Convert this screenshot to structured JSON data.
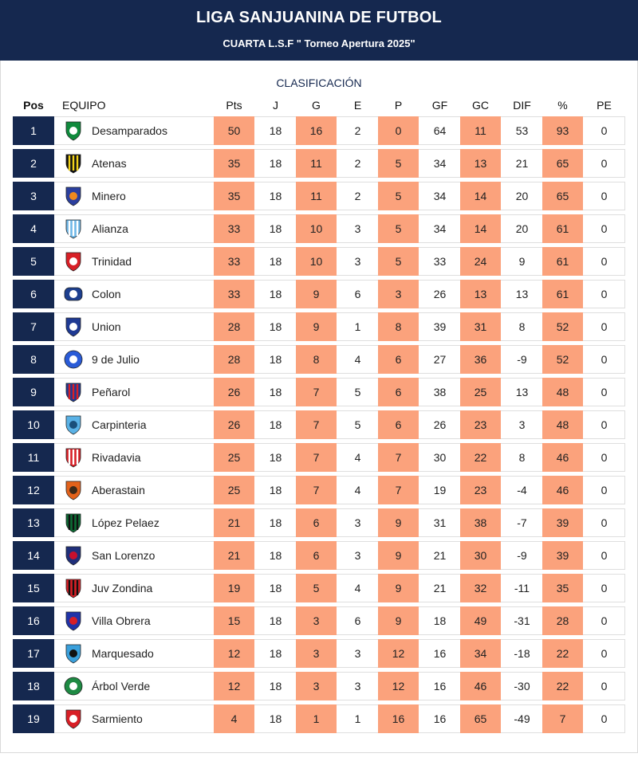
{
  "header": {
    "title": "LIGA SANJUANINA DE FUTBOL",
    "subtitle": "CUARTA L.S.F \" Torneo Apertura 2025\""
  },
  "table": {
    "title": "CLASIFICACIÓN",
    "columns": [
      "Pos",
      "EQUIPO",
      "Pts",
      "J",
      "G",
      "E",
      "P",
      "GF",
      "GC",
      "DIF",
      "%",
      "PE"
    ],
    "rows": [
      {
        "pos": "1",
        "team": "Desamparados",
        "pts": "50",
        "j": "18",
        "g": "16",
        "e": "2",
        "p": "0",
        "gf": "64",
        "gc": "11",
        "dif": "53",
        "pct": "93",
        "pe": "0",
        "crest": "desamparados-crest-icon",
        "c1": "#0f8a3c",
        "c2": "#ffffff",
        "shape": "shield"
      },
      {
        "pos": "2",
        "team": "Atenas",
        "pts": "35",
        "j": "18",
        "g": "11",
        "e": "2",
        "p": "5",
        "gf": "34",
        "gc": "13",
        "dif": "21",
        "pct": "65",
        "pe": "0",
        "crest": "atenas-crest-icon",
        "c1": "#111111",
        "c2": "#f2d21b",
        "shape": "stripes"
      },
      {
        "pos": "3",
        "team": "Minero",
        "pts": "35",
        "j": "18",
        "g": "11",
        "e": "2",
        "p": "5",
        "gf": "34",
        "gc": "14",
        "dif": "20",
        "pct": "65",
        "pe": "0",
        "crest": "minero-crest-icon",
        "c1": "#2b3f9e",
        "c2": "#f08a1d",
        "shape": "shield"
      },
      {
        "pos": "4",
        "team": "Alianza",
        "pts": "33",
        "j": "18",
        "g": "10",
        "e": "3",
        "p": "5",
        "gf": "34",
        "gc": "14",
        "dif": "20",
        "pct": "61",
        "pe": "0",
        "crest": "alianza-crest-icon",
        "c1": "#6fb8e8",
        "c2": "#ffffff",
        "shape": "stripes"
      },
      {
        "pos": "5",
        "team": "Trinidad",
        "pts": "33",
        "j": "18",
        "g": "10",
        "e": "3",
        "p": "5",
        "gf": "33",
        "gc": "24",
        "dif": "9",
        "pct": "61",
        "pe": "0",
        "crest": "trinidad-crest-icon",
        "c1": "#d81f26",
        "c2": "#ffffff",
        "shape": "shield"
      },
      {
        "pos": "6",
        "team": "Colon",
        "pts": "33",
        "j": "18",
        "g": "9",
        "e": "6",
        "p": "3",
        "gf": "26",
        "gc": "13",
        "dif": "13",
        "pct": "61",
        "pe": "0",
        "crest": "colon-crest-icon",
        "c1": "#1d3f8f",
        "c2": "#ffffff",
        "shape": "oval"
      },
      {
        "pos": "7",
        "team": "Union",
        "pts": "28",
        "j": "18",
        "g": "9",
        "e": "1",
        "p": "8",
        "gf": "39",
        "gc": "31",
        "dif": "8",
        "pct": "52",
        "pe": "0",
        "crest": "union-crest-icon",
        "c1": "#1f3a93",
        "c2": "#ffffff",
        "shape": "shield"
      },
      {
        "pos": "8",
        "team": "9 de Julio",
        "pts": "28",
        "j": "18",
        "g": "8",
        "e": "4",
        "p": "6",
        "gf": "27",
        "gc": "36",
        "dif": "-9",
        "pct": "52",
        "pe": "0",
        "crest": "nueve-de-julio-crest-icon",
        "c1": "#2a5bd7",
        "c2": "#ffffff",
        "shape": "circle"
      },
      {
        "pos": "9",
        "team": "Peñarol",
        "pts": "26",
        "j": "18",
        "g": "7",
        "e": "5",
        "p": "6",
        "gf": "38",
        "gc": "25",
        "dif": "13",
        "pct": "48",
        "pe": "0",
        "crest": "penarol-crest-icon",
        "c1": "#1f3a93",
        "c2": "#d81f26",
        "shape": "stripes"
      },
      {
        "pos": "10",
        "team": "Carpinteria",
        "pts": "26",
        "j": "18",
        "g": "7",
        "e": "5",
        "p": "6",
        "gf": "26",
        "gc": "23",
        "dif": "3",
        "pct": "48",
        "pe": "0",
        "crest": "carpinteria-crest-icon",
        "c1": "#5ab2e6",
        "c2": "#1a4f7a",
        "shape": "shield"
      },
      {
        "pos": "11",
        "team": "Rivadavia",
        "pts": "25",
        "j": "18",
        "g": "7",
        "e": "4",
        "p": "7",
        "gf": "30",
        "gc": "22",
        "dif": "8",
        "pct": "46",
        "pe": "0",
        "crest": "rivadavia-crest-icon",
        "c1": "#d81f26",
        "c2": "#ffffff",
        "shape": "stripes"
      },
      {
        "pos": "12",
        "team": "Aberastain",
        "pts": "25",
        "j": "18",
        "g": "7",
        "e": "4",
        "p": "7",
        "gf": "19",
        "gc": "23",
        "dif": "-4",
        "pct": "46",
        "pe": "0",
        "crest": "aberastain-crest-icon",
        "c1": "#e2621b",
        "c2": "#3b2a1a",
        "shape": "shield"
      },
      {
        "pos": "13",
        "team": "López Pelaez",
        "pts": "21",
        "j": "18",
        "g": "6",
        "e": "3",
        "p": "9",
        "gf": "31",
        "gc": "38",
        "dif": "-7",
        "pct": "39",
        "pe": "0",
        "crest": "lopez-pelaez-crest-icon",
        "c1": "#0c6b34",
        "c2": "#111111",
        "shape": "stripes"
      },
      {
        "pos": "14",
        "team": "San Lorenzo",
        "pts": "21",
        "j": "18",
        "g": "6",
        "e": "3",
        "p": "9",
        "gf": "21",
        "gc": "30",
        "dif": "-9",
        "pct": "39",
        "pe": "0",
        "crest": "san-lorenzo-crest-icon",
        "c1": "#1f2f7a",
        "c2": "#c8102e",
        "shape": "shield"
      },
      {
        "pos": "15",
        "team": "Juv Zondina",
        "pts": "19",
        "j": "18",
        "g": "5",
        "e": "4",
        "p": "9",
        "gf": "21",
        "gc": "32",
        "dif": "-11",
        "pct": "35",
        "pe": "0",
        "crest": "juv-zondina-crest-icon",
        "c1": "#d81f26",
        "c2": "#111111",
        "shape": "stripes"
      },
      {
        "pos": "16",
        "team": "Villa Obrera",
        "pts": "15",
        "j": "18",
        "g": "3",
        "e": "6",
        "p": "9",
        "gf": "18",
        "gc": "49",
        "dif": "-31",
        "pct": "28",
        "pe": "0",
        "crest": "villa-obrera-crest-icon",
        "c1": "#2033a8",
        "c2": "#d81f26",
        "shape": "shield"
      },
      {
        "pos": "17",
        "team": "Marquesado",
        "pts": "12",
        "j": "18",
        "g": "3",
        "e": "3",
        "p": "12",
        "gf": "16",
        "gc": "34",
        "dif": "-18",
        "pct": "22",
        "pe": "0",
        "crest": "marquesado-crest-icon",
        "c1": "#3aa0dc",
        "c2": "#111111",
        "shape": "shield"
      },
      {
        "pos": "18",
        "team": "Árbol Verde",
        "pts": "12",
        "j": "18",
        "g": "3",
        "e": "3",
        "p": "12",
        "gf": "16",
        "gc": "46",
        "dif": "-30",
        "pct": "22",
        "pe": "0",
        "crest": "arbol-verde-crest-icon",
        "c1": "#1e8a43",
        "c2": "#ffffff",
        "shape": "circle"
      },
      {
        "pos": "19",
        "team": "Sarmiento",
        "pts": "4",
        "j": "18",
        "g": "1",
        "e": "1",
        "p": "16",
        "gf": "16",
        "gc": "65",
        "dif": "-49",
        "pct": "7",
        "pe": "0",
        "crest": "sarmiento-crest-icon",
        "c1": "#d81f26",
        "c2": "#ffffff",
        "shape": "shield"
      }
    ]
  },
  "colors": {
    "navy": "#15284f",
    "highlight": "#fba27c",
    "border": "#dedede"
  }
}
